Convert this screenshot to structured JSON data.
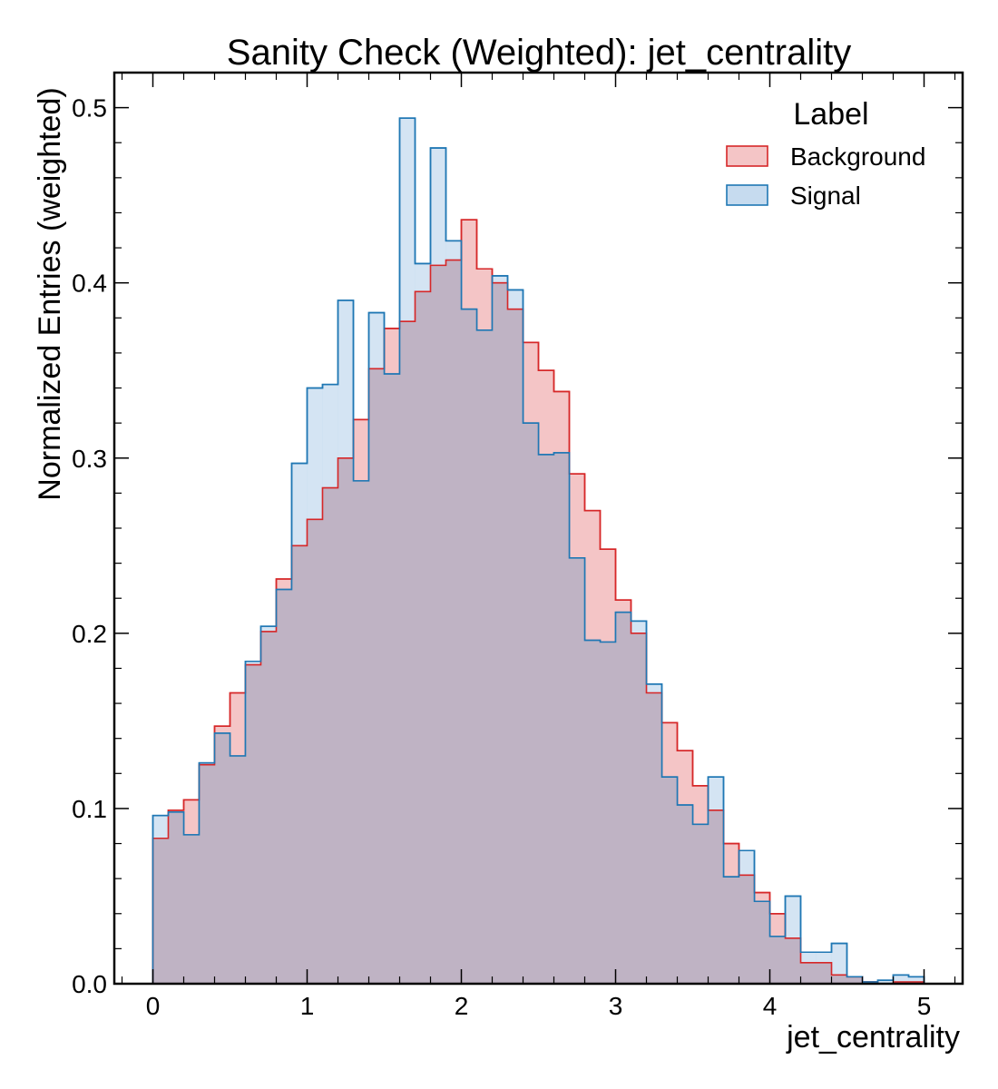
{
  "chart_data": {
    "type": "histogram-step",
    "title": "Sanity Check (Weighted): jet_centrality",
    "xlabel": "jet_centrality",
    "ylabel": "Normalized Entries (weighted)",
    "xlim": [
      -0.25,
      5.25
    ],
    "ylim": [
      0,
      0.52
    ],
    "xticks": [
      0,
      1,
      2,
      3,
      4,
      5
    ],
    "yticks": [
      0.0,
      0.1,
      0.2,
      0.3,
      0.4,
      0.5
    ],
    "xtick_labels": [
      "0",
      "1",
      "2",
      "3",
      "4",
      "5"
    ],
    "ytick_labels": [
      "0.0",
      "0.1",
      "0.2",
      "0.3",
      "0.4",
      "0.5"
    ],
    "bin_edges_start": 0.0,
    "bin_width": 0.1,
    "legend": {
      "title": "Label",
      "position": "top-right"
    },
    "series": [
      {
        "name": "Background",
        "color": "#d62728",
        "fill": "#f4c5c6",
        "values": [
          0.083,
          0.099,
          0.105,
          0.125,
          0.147,
          0.166,
          0.182,
          0.201,
          0.231,
          0.25,
          0.265,
          0.283,
          0.3,
          0.322,
          0.351,
          0.374,
          0.378,
          0.395,
          0.41,
          0.413,
          0.436,
          0.408,
          0.4,
          0.385,
          0.366,
          0.35,
          0.338,
          0.291,
          0.27,
          0.248,
          0.219,
          0.2,
          0.166,
          0.149,
          0.133,
          0.113,
          0.099,
          0.08,
          0.062,
          0.052,
          0.04,
          0.026,
          0.012,
          0.012,
          0.005,
          0.004,
          0.001,
          0.0,
          0.001,
          0.001
        ]
      },
      {
        "name": "Signal",
        "color": "#1f77b4",
        "fill": "#c6dbef",
        "values": [
          0.096,
          0.098,
          0.085,
          0.126,
          0.143,
          0.13,
          0.184,
          0.204,
          0.225,
          0.297,
          0.34,
          0.342,
          0.39,
          0.287,
          0.383,
          0.348,
          0.494,
          0.411,
          0.477,
          0.424,
          0.385,
          0.373,
          0.404,
          0.396,
          0.32,
          0.302,
          0.303,
          0.243,
          0.196,
          0.195,
          0.212,
          0.207,
          0.171,
          0.118,
          0.102,
          0.091,
          0.118,
          0.061,
          0.076,
          0.047,
          0.027,
          0.05,
          0.018,
          0.018,
          0.023,
          0.004,
          0.001,
          0.002,
          0.005,
          0.004
        ]
      }
    ]
  }
}
